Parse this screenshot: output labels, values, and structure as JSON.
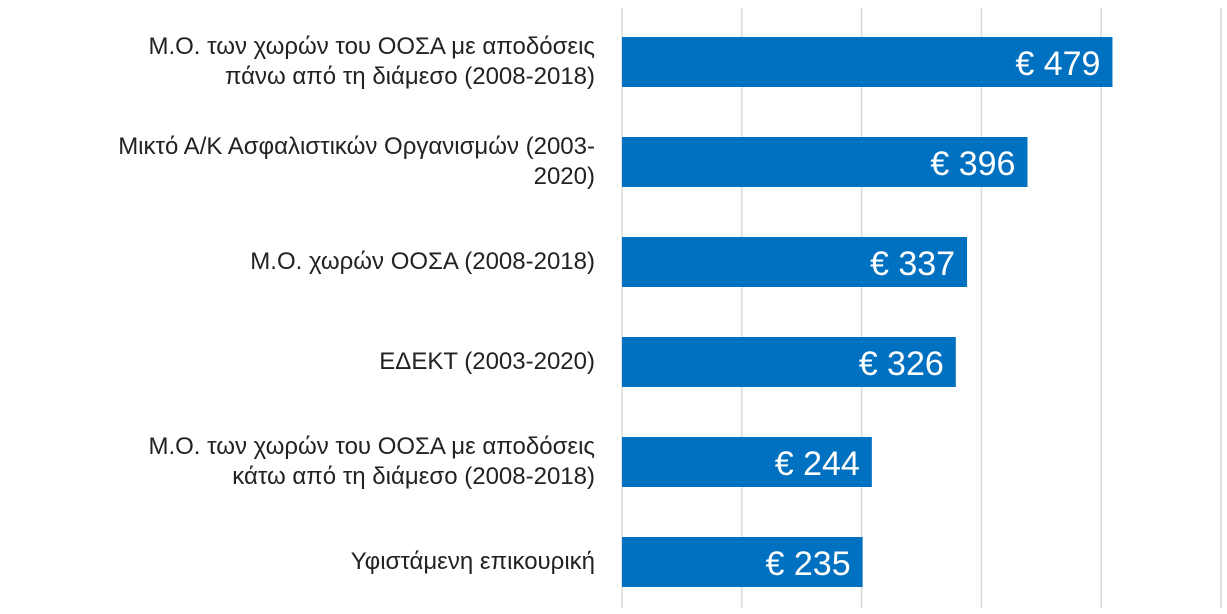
{
  "chart_data": {
    "type": "barh",
    "categories": [
      "Μ.Ο.  των χωρών του ΟΟΣΑ με αποδόσεις\nπάνω από τη διάμεσο (2008-2018)",
      "Μικτό Α/Κ  Ασφαλιστικών Οργανισμών (2003-\n2020)",
      "Μ.Ο.  χωρών ΟΟΣΑ (2008-2018)",
      "ΕΔΕΚΤ (2003-2020)",
      "Μ.Ο.  των χωρών του ΟΟΣΑ με αποδόσεις\nκάτω από τη διάμεσο (2008-2018)",
      "Υφιστάμενη επικουρική"
    ],
    "values": [
      479,
      396,
      337,
      326,
      244,
      235
    ],
    "value_labels": [
      "€ 479",
      "€ 396",
      "€ 337",
      "€ 326",
      "€ 244",
      "€ 235"
    ],
    "color": "#0070c0",
    "xlim": [
      0,
      585
    ],
    "xticks": [
      0,
      117,
      234,
      351,
      468,
      585
    ],
    "grid": true
  }
}
